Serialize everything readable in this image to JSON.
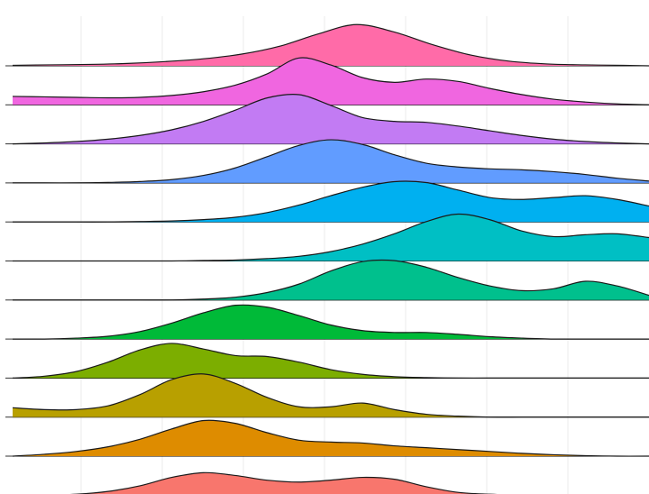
{
  "chart_data": {
    "type": "area",
    "subtype": "ridgeline",
    "title": "",
    "xlabel": "",
    "ylabel": "",
    "xlim": [
      0,
      100
    ],
    "grid": true,
    "legend": "none",
    "series": [
      {
        "color": "#FF6BA8",
        "x": [
          0,
          6,
          12,
          18,
          24,
          30,
          36,
          42,
          48,
          54,
          60,
          66,
          72,
          78,
          84,
          90,
          96,
          100
        ],
        "values": [
          0.01,
          0.02,
          0.03,
          0.05,
          0.09,
          0.15,
          0.25,
          0.42,
          0.68,
          0.88,
          0.72,
          0.45,
          0.23,
          0.1,
          0.04,
          0.02,
          0.01,
          0.0
        ]
      },
      {
        "color": "#F066E0",
        "x": [
          0,
          5,
          10,
          15,
          20,
          25,
          30,
          35,
          40,
          45,
          50,
          55,
          60,
          65,
          70,
          75,
          80,
          85,
          90,
          95,
          100
        ],
        "values": [
          0.18,
          0.17,
          0.16,
          0.15,
          0.16,
          0.2,
          0.28,
          0.42,
          0.66,
          1.0,
          0.85,
          0.58,
          0.48,
          0.55,
          0.5,
          0.35,
          0.22,
          0.12,
          0.06,
          0.02,
          0.0
        ]
      },
      {
        "color": "#C27BF3",
        "x": [
          0,
          5,
          10,
          15,
          20,
          25,
          30,
          35,
          40,
          45,
          50,
          55,
          60,
          65,
          70,
          75,
          80,
          85,
          90,
          95,
          100
        ],
        "values": [
          0.0,
          0.02,
          0.05,
          0.1,
          0.18,
          0.3,
          0.48,
          0.72,
          0.98,
          1.05,
          0.82,
          0.56,
          0.48,
          0.46,
          0.38,
          0.28,
          0.18,
          0.1,
          0.05,
          0.02,
          0.0
        ]
      },
      {
        "color": "#619CFF",
        "x": [
          0,
          5,
          10,
          15,
          20,
          25,
          30,
          35,
          40,
          45,
          50,
          55,
          60,
          65,
          70,
          75,
          80,
          85,
          90,
          95,
          100
        ],
        "values": [
          0.0,
          0.0,
          0.0,
          0.01,
          0.03,
          0.07,
          0.16,
          0.32,
          0.56,
          0.8,
          0.92,
          0.82,
          0.6,
          0.42,
          0.34,
          0.3,
          0.28,
          0.24,
          0.18,
          0.1,
          0.04
        ]
      },
      {
        "color": "#00B0F0",
        "x": [
          0,
          5,
          10,
          15,
          20,
          25,
          30,
          35,
          40,
          45,
          50,
          55,
          60,
          65,
          70,
          75,
          80,
          85,
          90,
          95,
          100
        ],
        "values": [
          0.0,
          0.0,
          0.0,
          0.0,
          0.01,
          0.02,
          0.05,
          0.1,
          0.2,
          0.36,
          0.56,
          0.74,
          0.86,
          0.84,
          0.68,
          0.52,
          0.48,
          0.52,
          0.56,
          0.48,
          0.34
        ]
      },
      {
        "color": "#00BFC4",
        "x": [
          0,
          5,
          10,
          15,
          20,
          25,
          30,
          35,
          40,
          45,
          50,
          55,
          60,
          65,
          70,
          75,
          80,
          85,
          90,
          95,
          100
        ],
        "values": [
          0.0,
          0.0,
          0.0,
          0.0,
          0.0,
          0.0,
          0.01,
          0.02,
          0.05,
          0.1,
          0.2,
          0.36,
          0.58,
          0.84,
          1.0,
          0.88,
          0.64,
          0.52,
          0.56,
          0.58,
          0.5
        ]
      },
      {
        "color": "#00C08D",
        "x": [
          0,
          5,
          10,
          15,
          20,
          25,
          30,
          35,
          40,
          45,
          50,
          55,
          60,
          65,
          70,
          75,
          80,
          85,
          90,
          95,
          100
        ],
        "values": [
          0.0,
          0.0,
          0.0,
          0.0,
          0.0,
          0.0,
          0.02,
          0.06,
          0.16,
          0.34,
          0.62,
          0.82,
          0.84,
          0.7,
          0.48,
          0.3,
          0.2,
          0.24,
          0.4,
          0.3,
          0.1
        ]
      },
      {
        "color": "#00BA38",
        "x": [
          0,
          5,
          10,
          15,
          20,
          25,
          30,
          35,
          40,
          45,
          50,
          55,
          60,
          65,
          70,
          75,
          80,
          85,
          90,
          95,
          100
        ],
        "values": [
          0.0,
          0.0,
          0.02,
          0.06,
          0.16,
          0.34,
          0.56,
          0.72,
          0.68,
          0.5,
          0.3,
          0.18,
          0.14,
          0.14,
          0.1,
          0.05,
          0.02,
          0.0,
          0.0,
          0.0,
          0.0
        ]
      },
      {
        "color": "#7CAE00",
        "x": [
          0,
          5,
          10,
          15,
          20,
          25,
          30,
          35,
          40,
          45,
          50,
          55,
          60,
          65,
          70,
          75,
          80,
          85,
          90,
          95,
          100
        ],
        "values": [
          0.0,
          0.04,
          0.14,
          0.34,
          0.6,
          0.74,
          0.62,
          0.48,
          0.46,
          0.34,
          0.18,
          0.08,
          0.03,
          0.01,
          0.0,
          0.0,
          0.0,
          0.0,
          0.0,
          0.0,
          0.0
        ]
      },
      {
        "color": "#B8A000",
        "x": [
          0,
          5,
          10,
          15,
          20,
          25,
          30,
          35,
          40,
          45,
          50,
          55,
          60,
          65,
          70,
          75,
          80,
          85,
          90,
          95,
          100
        ],
        "values": [
          0.2,
          0.16,
          0.16,
          0.24,
          0.48,
          0.8,
          0.92,
          0.72,
          0.42,
          0.22,
          0.22,
          0.3,
          0.16,
          0.06,
          0.02,
          0.0,
          0.0,
          0.0,
          0.0,
          0.0,
          0.0
        ]
      },
      {
        "color": "#DE8C00",
        "x": [
          0,
          5,
          10,
          15,
          20,
          25,
          30,
          35,
          40,
          45,
          50,
          55,
          60,
          65,
          70,
          75,
          80,
          85,
          90,
          95,
          100
        ],
        "values": [
          0.0,
          0.04,
          0.1,
          0.2,
          0.36,
          0.58,
          0.76,
          0.7,
          0.5,
          0.34,
          0.3,
          0.28,
          0.22,
          0.18,
          0.14,
          0.1,
          0.06,
          0.03,
          0.01,
          0.0,
          0.0
        ]
      },
      {
        "color": "#F8766D",
        "x": [
          0,
          5,
          10,
          15,
          20,
          25,
          30,
          35,
          40,
          45,
          50,
          55,
          60,
          65,
          70,
          75,
          80,
          85,
          90,
          95,
          100
        ],
        "values": [
          0.0,
          0.0,
          0.02,
          0.08,
          0.2,
          0.38,
          0.48,
          0.42,
          0.32,
          0.28,
          0.32,
          0.38,
          0.34,
          0.18,
          0.06,
          0.02,
          0.0,
          0.0,
          0.0,
          0.0,
          0.0
        ]
      }
    ]
  }
}
